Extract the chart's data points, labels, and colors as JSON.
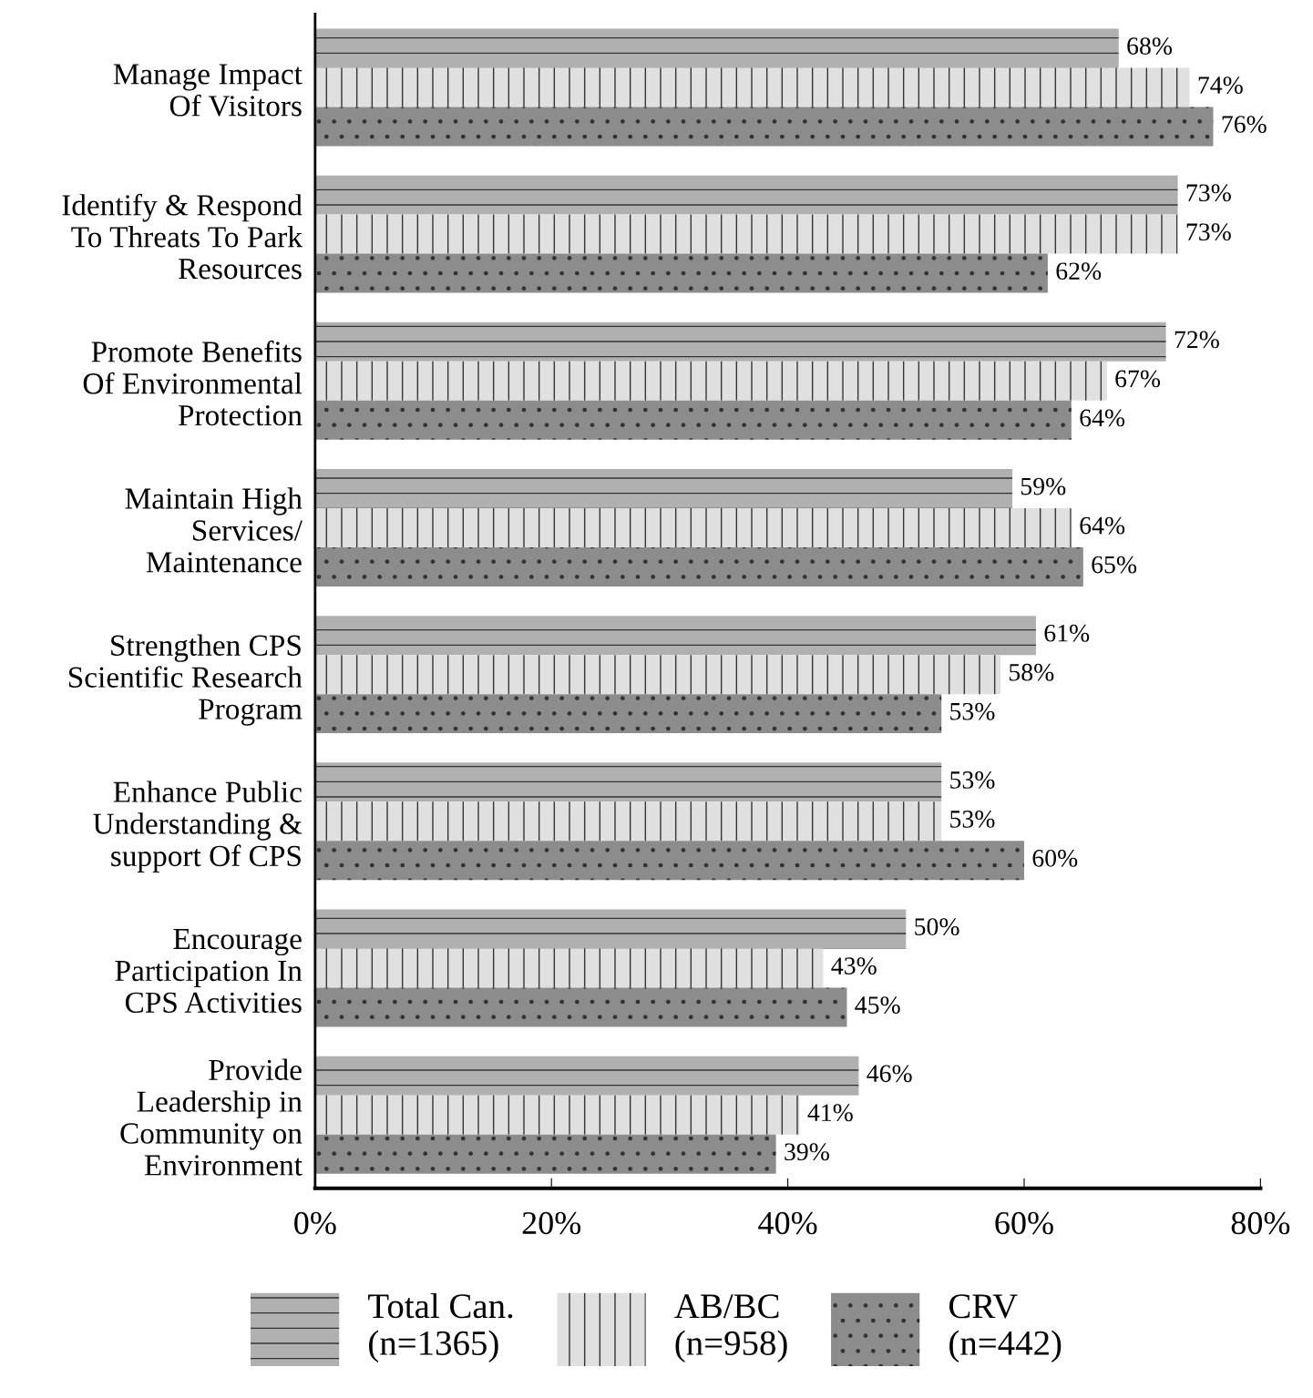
{
  "chart_data": {
    "type": "bar",
    "orientation": "horizontal",
    "categories": [
      "Manage Impact\nOf Visitors",
      "Identify & Respond\nTo Threats To Park\nResources",
      "Promote Benefits\nOf Environmental\nProtection",
      "Maintain High\nServices/\nMaintenance",
      "Strengthen CPS\nScientific Research\nProgram",
      "Enhance Public\nUnderstanding &\nsupport Of CPS",
      "Encourage\nParticipation In\nCPS Activities",
      "Provide\nLeadership in\nCommunity on\nEnvironment"
    ],
    "series": [
      {
        "name": "Total Can.\n(n=1365)",
        "color": "#b0b0b0",
        "values": [
          68,
          73,
          72,
          59,
          61,
          53,
          50,
          46
        ],
        "value_labels": [
          "68%",
          "73%",
          "72%",
          "59%",
          "61%",
          "53%",
          "50%",
          "46%"
        ]
      },
      {
        "name": "AB/BC\n(n=958)",
        "color": "#e0e0e0",
        "values": [
          74,
          73,
          67,
          64,
          58,
          53,
          43,
          41
        ],
        "value_labels": [
          "74%",
          "73%",
          "67%",
          "64%",
          "58%",
          "53%",
          "43%",
          "41%"
        ]
      },
      {
        "name": "CRV\n(n=442)",
        "color": "#8c8c8c",
        "values": [
          76,
          62,
          64,
          65,
          53,
          60,
          45,
          39
        ],
        "value_labels": [
          "76%",
          "62%",
          "64%",
          "65%",
          "53%",
          "60%",
          "45%",
          "39%"
        ]
      }
    ],
    "xlim": [
      0,
      80
    ],
    "xticks": [
      {
        "value": 0,
        "label": "0%"
      },
      {
        "value": 20,
        "label": "20%"
      },
      {
        "value": 40,
        "label": "40%"
      },
      {
        "value": 60,
        "label": "60%"
      },
      {
        "value": 80,
        "label": "80%"
      }
    ],
    "grid": false,
    "legend": "bottom"
  }
}
